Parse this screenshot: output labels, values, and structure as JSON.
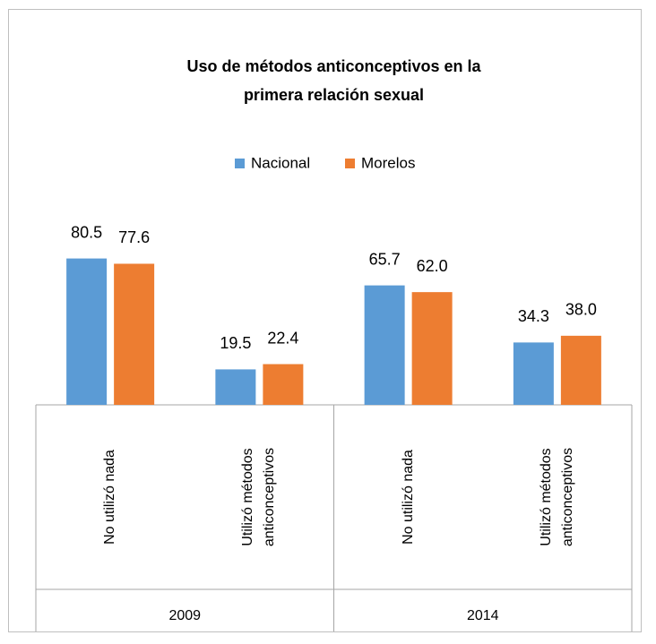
{
  "chart_data": {
    "type": "bar",
    "title": "Uso de métodos anticonceptivos en la primera relación sexual",
    "groups": [
      {
        "name": "2009",
        "categories": [
          "No utilizó nada",
          "Utilizó métodos anticonceptivos"
        ]
      },
      {
        "name": "2014",
        "categories": [
          "No utilizó nada",
          "Utilizó métodos anticonceptivos"
        ]
      }
    ],
    "series": [
      {
        "name": "Nacional",
        "color": "#5b9bd5",
        "values": [
          80.5,
          19.5,
          65.7,
          34.3
        ]
      },
      {
        "name": "Morelos",
        "color": "#ed7d31",
        "values": [
          77.6,
          22.4,
          62,
          38
        ],
        "value_labels": [
          "77.6",
          "22.4",
          "62.0",
          "38.0"
        ]
      }
    ],
    "legend": "top"
  }
}
